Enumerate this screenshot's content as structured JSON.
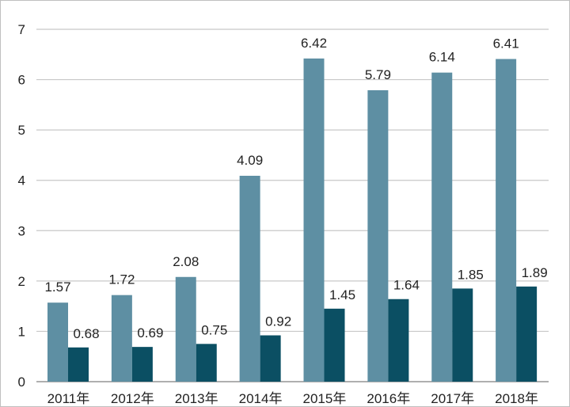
{
  "chart_data": {
    "type": "bar",
    "title": "",
    "xlabel": "",
    "ylabel": "",
    "categories": [
      "2011年",
      "2012年",
      "2013年",
      "2014年",
      "2015年",
      "2016年",
      "2017年",
      "2018年"
    ],
    "series": [
      {
        "values": [
          1.57,
          1.72,
          2.08,
          4.09,
          6.42,
          5.79,
          6.14,
          6.41
        ],
        "color": "#5e8fa3"
      },
      {
        "values": [
          0.68,
          0.69,
          0.75,
          0.92,
          1.45,
          1.64,
          1.85,
          1.89
        ],
        "color": "#0b4f63"
      }
    ],
    "ylim": [
      0,
      7
    ],
    "yticks": [
      0,
      1,
      2,
      3,
      4,
      5,
      6,
      7
    ],
    "grid": true,
    "legend": "none",
    "data_labels": true
  }
}
